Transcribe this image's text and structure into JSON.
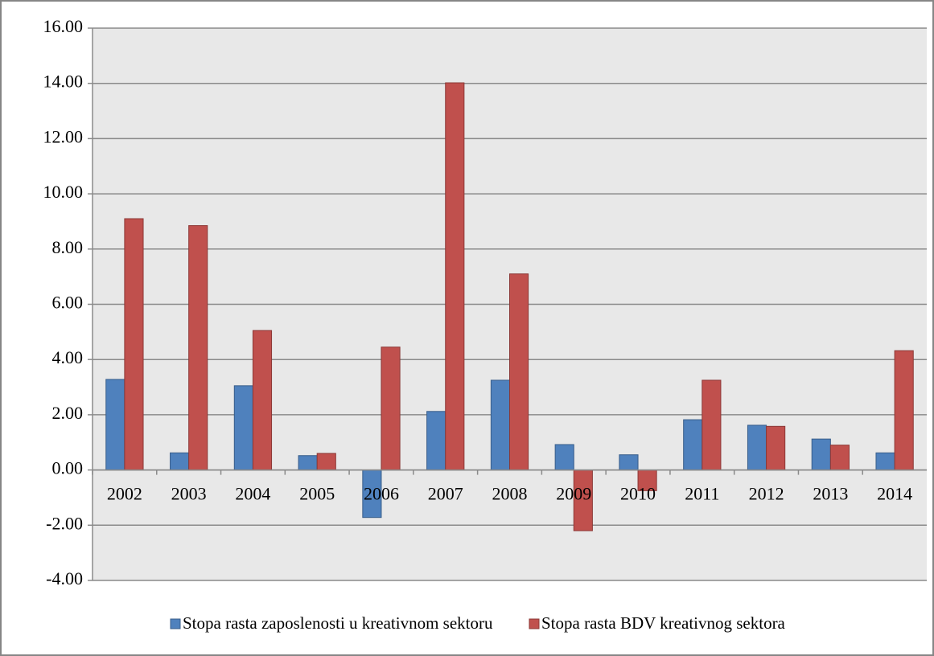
{
  "chart_data": {
    "type": "bar",
    "categories": [
      "2002",
      "2003",
      "2004",
      "2005",
      "2006",
      "2007",
      "2008",
      "2009",
      "2010",
      "2011",
      "2012",
      "2013",
      "2014"
    ],
    "series": [
      {
        "name": "Stopa rasta zaposlenosti u kreativnom sektoru",
        "color": "#4f81bd",
        "values": [
          3.28,
          0.62,
          3.05,
          0.52,
          -1.72,
          2.12,
          3.25,
          0.92,
          0.55,
          1.82,
          1.62,
          1.12,
          0.62
        ]
      },
      {
        "name": "Stopa rasta BDV kreativnog sektora",
        "color": "#c0504d",
        "values": [
          9.1,
          8.85,
          5.05,
          0.6,
          4.45,
          14.02,
          7.1,
          -2.2,
          -0.75,
          3.25,
          1.58,
          0.9,
          4.32
        ]
      }
    ],
    "ylim": [
      -4,
      16
    ],
    "yticks": [
      {
        "value": -4,
        "label": "-4.00"
      },
      {
        "value": -2,
        "label": "-2.00"
      },
      {
        "value": 0,
        "label": "0.00"
      },
      {
        "value": 2,
        "label": "2.00"
      },
      {
        "value": 4,
        "label": "4.00"
      },
      {
        "value": 6,
        "label": "6.00"
      },
      {
        "value": 8,
        "label": "8.00"
      },
      {
        "value": 10,
        "label": "10.00"
      },
      {
        "value": 12,
        "label": "12.00"
      },
      {
        "value": 14,
        "label": "14.00"
      },
      {
        "value": 16,
        "label": "16.00"
      }
    ],
    "grid": true,
    "legend": "bottom"
  }
}
